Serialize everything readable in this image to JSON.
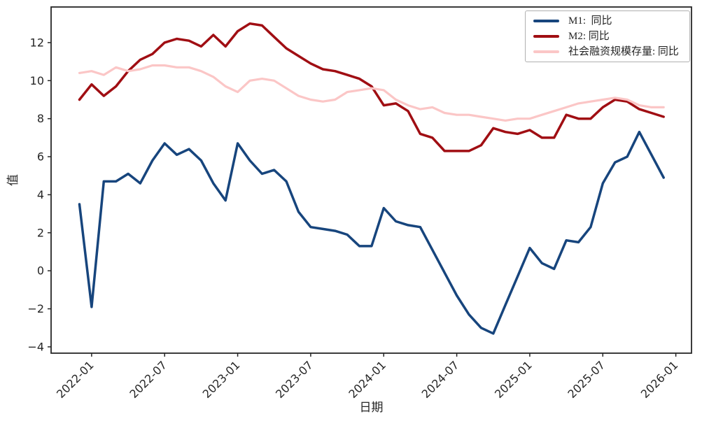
{
  "chart_data": {
    "type": "line",
    "title": "",
    "xlabel": "日期",
    "ylabel": "值",
    "legend_position": "upper right",
    "grid": false,
    "frame_color": "#262626",
    "text_color": "#262626",
    "x_tick_labels": [
      "2022-01",
      "2022-07",
      "2023-01",
      "2023-07",
      "2024-01",
      "2024-07",
      "2025-01",
      "2025-07",
      "2026-01"
    ],
    "y_ticks": [
      -4,
      -2,
      0,
      2,
      4,
      6,
      8,
      10,
      12
    ],
    "y_tick_labels": [
      "−4",
      "−2",
      "0",
      "2",
      "4",
      "6",
      "8",
      "10",
      "12"
    ],
    "ylim": [
      -4.33,
      13.87
    ],
    "x": [
      "2021-12",
      "2022-01",
      "2022-02",
      "2022-03",
      "2022-04",
      "2022-05",
      "2022-06",
      "2022-07",
      "2022-08",
      "2022-09",
      "2022-10",
      "2022-11",
      "2022-12",
      "2023-01",
      "2023-02",
      "2023-03",
      "2023-04",
      "2023-05",
      "2023-06",
      "2023-07",
      "2023-08",
      "2023-09",
      "2023-10",
      "2023-11",
      "2023-12",
      "2024-01",
      "2024-02",
      "2024-03",
      "2024-04",
      "2024-05",
      "2024-06",
      "2024-07",
      "2024-08",
      "2024-09",
      "2024-10",
      "2024-11",
      "2024-12",
      "2025-01",
      "2025-02",
      "2025-03",
      "2025-04",
      "2025-05",
      "2025-06",
      "2025-07",
      "2025-08",
      "2025-09",
      "2025-10",
      "2025-11",
      "2025-12"
    ],
    "series": [
      {
        "name": "M1:  同比",
        "color": "#17457d",
        "line_width": 3.5,
        "values": [
          3.5,
          -1.9,
          4.7,
          4.7,
          5.1,
          4.6,
          5.8,
          6.7,
          6.1,
          6.4,
          5.8,
          4.6,
          3.7,
          6.7,
          5.8,
          5.1,
          5.3,
          4.7,
          3.1,
          2.3,
          2.2,
          2.1,
          1.9,
          1.3,
          1.3,
          3.3,
          2.6,
          2.4,
          2.3,
          1.1,
          -0.1,
          -1.3,
          -2.3,
          -3.0,
          -3.3,
          -1.8,
          -0.3,
          1.2,
          0.4,
          0.1,
          1.6,
          1.5,
          2.3,
          4.6,
          5.7,
          6.0,
          7.3,
          6.1,
          4.9
        ]
      },
      {
        "name": "M2: 同比",
        "color": "#a00e13",
        "line_width": 3.5,
        "values": [
          9.0,
          9.8,
          9.2,
          9.7,
          10.5,
          11.1,
          11.4,
          12.0,
          12.2,
          12.1,
          11.8,
          12.4,
          11.8,
          12.6,
          13.0,
          12.9,
          12.3,
          11.7,
          11.3,
          10.9,
          10.6,
          10.5,
          10.3,
          10.1,
          9.7,
          8.7,
          8.8,
          8.4,
          7.2,
          7.0,
          6.3,
          6.3,
          6.3,
          6.6,
          7.5,
          7.3,
          7.2,
          7.4,
          7.0,
          7.0,
          8.2,
          8.0,
          8.0,
          8.6,
          9.0,
          8.9,
          8.5,
          8.3,
          8.1
        ]
      },
      {
        "name": "社会融资规模存量: 同比",
        "color": "#fbc6c6",
        "line_width": 3.2,
        "values": [
          10.4,
          10.5,
          10.3,
          10.7,
          10.5,
          10.6,
          10.8,
          10.8,
          10.7,
          10.7,
          10.5,
          10.2,
          9.7,
          9.4,
          10.0,
          10.1,
          10.0,
          9.6,
          9.2,
          9.0,
          8.9,
          9.0,
          9.4,
          9.5,
          9.6,
          9.5,
          9.0,
          8.7,
          8.5,
          8.6,
          8.3,
          8.2,
          8.2,
          8.1,
          8.0,
          7.9,
          8.0,
          8.0,
          8.2,
          8.4,
          8.6,
          8.8,
          8.9,
          9.0,
          9.1,
          9.0,
          8.7,
          8.6,
          8.6
        ]
      }
    ]
  }
}
